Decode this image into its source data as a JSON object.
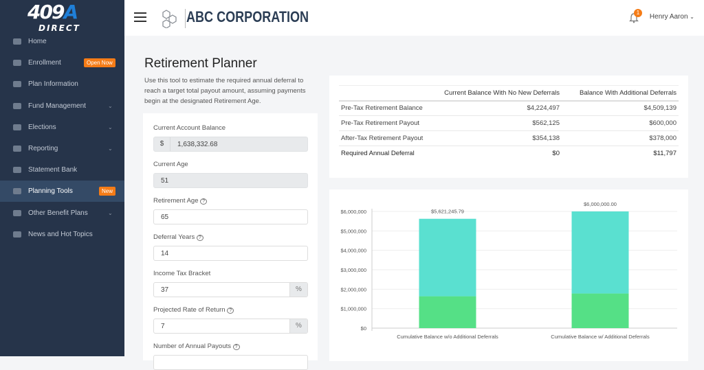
{
  "sidebar": {
    "logo": {
      "num": "409",
      "letter": "A",
      "sub": "DIRECT"
    },
    "items": [
      {
        "label": "Home",
        "icon": "home-icon"
      },
      {
        "label": "Enrollment",
        "icon": "handshake-icon",
        "badge": "Open Now"
      },
      {
        "label": "Plan Information",
        "icon": "book-icon"
      },
      {
        "label": "Fund Management",
        "icon": "chart-line-icon",
        "expand": true
      },
      {
        "label": "Elections",
        "icon": "money-icon",
        "expand": true
      },
      {
        "label": "Reporting",
        "icon": "bar-chart-icon",
        "expand": true
      },
      {
        "label": "Statement Bank",
        "icon": "statement-icon"
      },
      {
        "label": "Planning Tools",
        "icon": "toolbox-icon",
        "badge": "New",
        "active": true
      },
      {
        "label": "Other Benefit Plans",
        "icon": "leaf-icon",
        "expand": true
      },
      {
        "label": "News and Hot Topics",
        "icon": "newspaper-icon"
      }
    ]
  },
  "header": {
    "company": "ABC CORPORATION",
    "notifications": "1",
    "user": "Henry Aaron"
  },
  "page": {
    "title": "Retirement Planner",
    "description": "Use this tool to estimate the required annual deferral to reach a target total payout amount, assuming payments begin at the designated Retirement Age."
  },
  "form": {
    "balance_label": "Current Account Balance",
    "balance_prefix": "$",
    "balance": "1,638,332.68",
    "age_label": "Current Age",
    "age": "51",
    "ret_age_label": "Retirement Age",
    "ret_age": "65",
    "def_years_label": "Deferral Years",
    "def_years": "14",
    "tax_label": "Income Tax Bracket",
    "tax": "37",
    "pct": "%",
    "ror_label": "Projected Rate of Return",
    "ror": "7",
    "payouts_label": "Number of Annual Payouts",
    "help": "?"
  },
  "summary": {
    "headers": [
      "",
      "Current Balance With No New Deferrals",
      "Balance With Additional Deferrals"
    ],
    "rows": [
      [
        "Pre-Tax Retirement Balance",
        "$4,224,497",
        "$4,509,139"
      ],
      [
        "Pre-Tax Retirement Payout",
        "$562,125",
        "$600,000"
      ],
      [
        "After-Tax Retirement Payout",
        "$354,138",
        "$378,000"
      ],
      [
        "Required Annual Deferral",
        "$0",
        "$11,797"
      ]
    ]
  },
  "chart_data": {
    "type": "bar",
    "stacked": true,
    "categories": [
      "Cumulative Balance w/o Additional Deferrals",
      "Cumulative Balance w/ Additional Deferrals"
    ],
    "series": [
      {
        "values": [
          1638332.68,
          1780000
        ],
        "color": "#55e086"
      },
      {
        "values": [
          3982913.11,
          4220000
        ],
        "color": "#5ae0d0"
      }
    ],
    "totals_labels": [
      "$5,621,245.79",
      "$6,000,000.00"
    ],
    "ylim": [
      0,
      6000000
    ],
    "yticks": [
      "$0",
      "$1,000,000",
      "$2,000,000",
      "$3,000,000",
      "$4,000,000",
      "$5,000,000",
      "$6,000,000"
    ],
    "grid": true
  }
}
